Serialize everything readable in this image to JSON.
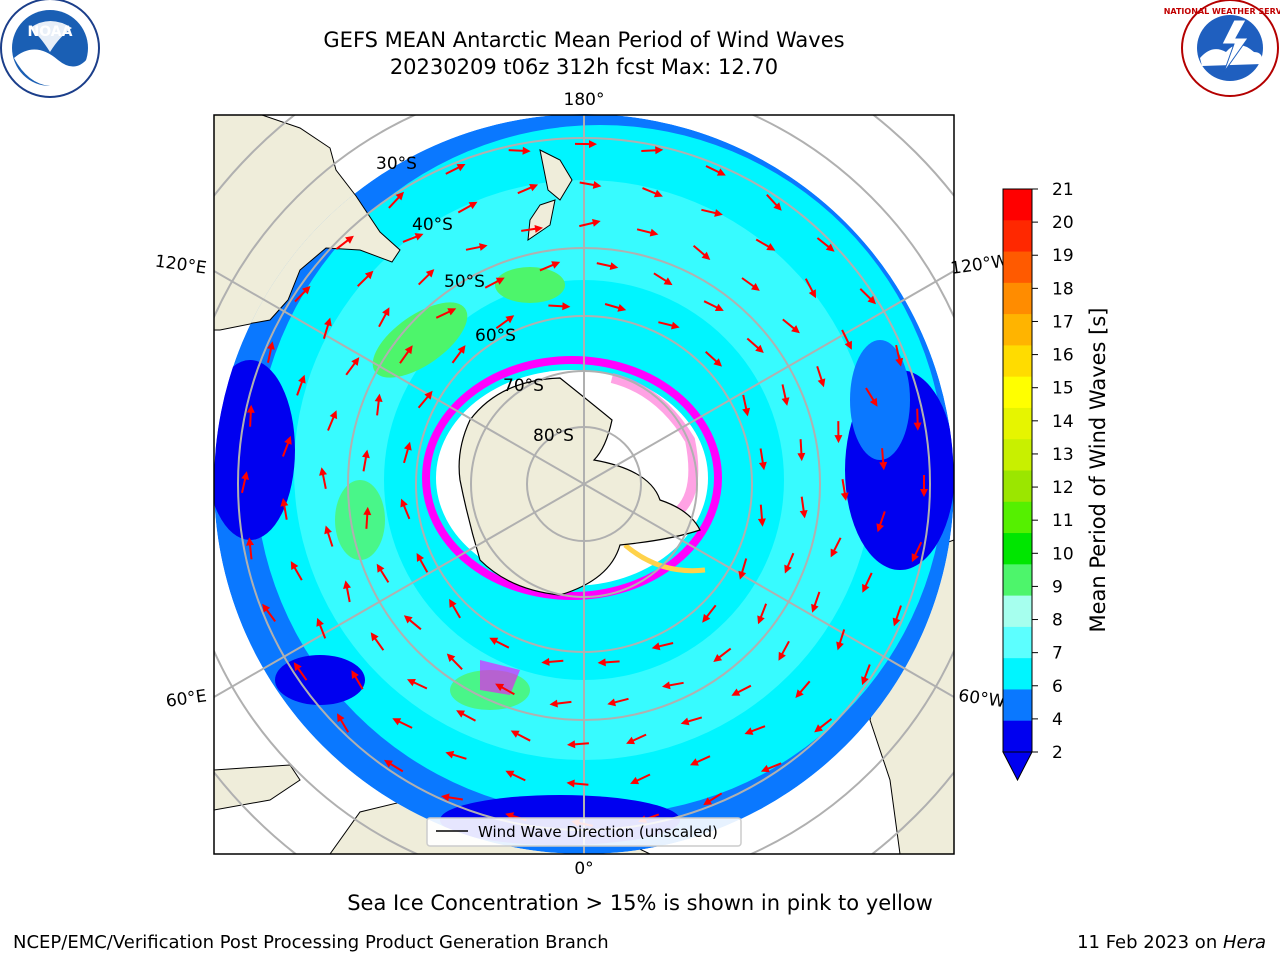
{
  "header": {
    "title": "GEFS MEAN Antarctic Mean Period of Wind Waves",
    "subtitle": "20230209 t06z 312h fcst   Max: 12.70"
  },
  "logos": {
    "left": {
      "name": "NOAA",
      "text": "NOAA"
    },
    "right": {
      "name": "National Weather Service",
      "text": "NATIONAL WEATHER SERVICE"
    }
  },
  "map": {
    "projection": "south-polar-stereographic",
    "longitude_labels": [
      "180°",
      "120°E",
      "120°W",
      "60°E",
      "60°W",
      "0°"
    ],
    "latitude_labels": [
      "30°S",
      "40°S",
      "50°S",
      "60°S",
      "70°S",
      "80°S"
    ],
    "legend": "Wind Wave Direction (unscaled)",
    "arrow_color": "#ff0000",
    "land_color": "#efedda"
  },
  "colorbar": {
    "label": "Mean Period of Wind Waves [s]",
    "ticks": [
      "21",
      "20",
      "19",
      "18",
      "17",
      "16",
      "15",
      "14",
      "13",
      "12",
      "11",
      "10",
      "9",
      "8",
      "7",
      "6",
      "4",
      "2"
    ],
    "colors": [
      "#ff0000",
      "#ff2800",
      "#ff5a00",
      "#ff8c00",
      "#ffb400",
      "#ffdc00",
      "#ffff00",
      "#e6f500",
      "#c8f000",
      "#9be600",
      "#55f000",
      "#00e600",
      "#4df56b",
      "#a6ffee",
      "#5cffff",
      "#00f5ff",
      "#0a78ff",
      "#0000f0"
    ],
    "under_color": "#0000f0"
  },
  "note": "Sea Ice Concentration > 15% is shown in pink to yellow",
  "footer": {
    "left": "NCEP/EMC/Verification Post Processing Product Generation Branch",
    "right_prefix": "11 Feb 2023 on ",
    "right_italic": "Hera"
  }
}
